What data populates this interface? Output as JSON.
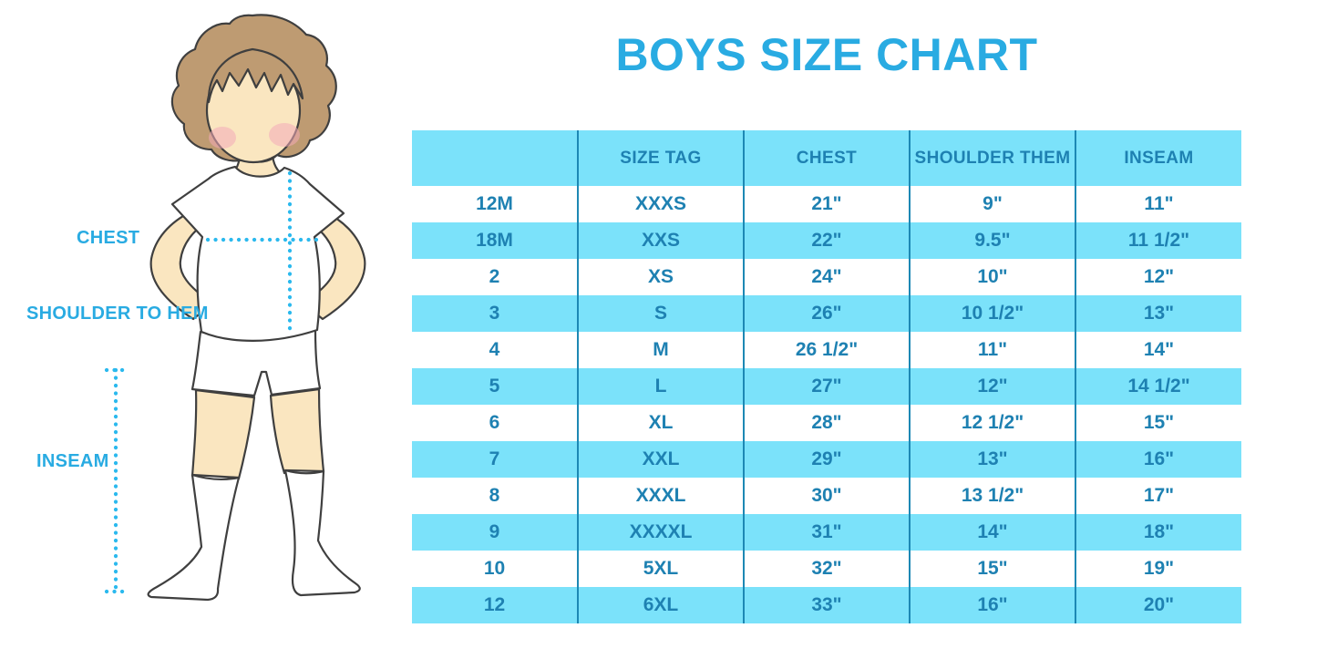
{
  "title": "BOYS SIZE CHART",
  "figure": {
    "description": "cartoon boy in white t-shirt, shorts and knee socks with dotted measurement guides",
    "labels": {
      "chest": "CHEST",
      "shoulder_to_hem": "SHOULDER TO HEM",
      "inseam": "INSEAM"
    }
  },
  "chart_data": {
    "type": "table",
    "title": "BOYS SIZE CHART",
    "columns": [
      "",
      "SIZE TAG",
      "CHEST",
      "SHOULDER THEM",
      "INSEAM"
    ],
    "rows": [
      [
        "12M",
        "XXXS",
        "21\"",
        "9\"",
        "11\""
      ],
      [
        "18M",
        "XXS",
        "22\"",
        "9.5\"",
        "11 1/2\""
      ],
      [
        "2",
        "XS",
        "24\"",
        "10\"",
        "12\""
      ],
      [
        "3",
        "S",
        "26\"",
        "10 1/2\"",
        "13\""
      ],
      [
        "4",
        "M",
        "26 1/2\"",
        "11\"",
        "14\""
      ],
      [
        "5",
        "L",
        "27\"",
        "12\"",
        "14 1/2\""
      ],
      [
        "6",
        "XL",
        "28\"",
        "12 1/2\"",
        "15\""
      ],
      [
        "7",
        "XXL",
        "29\"",
        "13\"",
        "16\""
      ],
      [
        "8",
        "XXXL",
        "30\"",
        "13 1/2\"",
        "17\""
      ],
      [
        "9",
        "XXXXL",
        "31\"",
        "14\"",
        "18\""
      ],
      [
        "10",
        "5XL",
        "32\"",
        "15\"",
        "19\""
      ],
      [
        "12",
        "6XL",
        "33\"",
        "16\"",
        "20\""
      ]
    ]
  },
  "colors": {
    "accent": "#29ABE2",
    "stripe": "#7BE2FA",
    "divider": "#1D88B4",
    "table_text": "#1E81B2",
    "dotted_line": "#2BB9EE",
    "skin": "#FAE6C0",
    "hair": "#BE9B72",
    "cheek": "#F2A9B8",
    "outline": "#3F3F3F"
  }
}
